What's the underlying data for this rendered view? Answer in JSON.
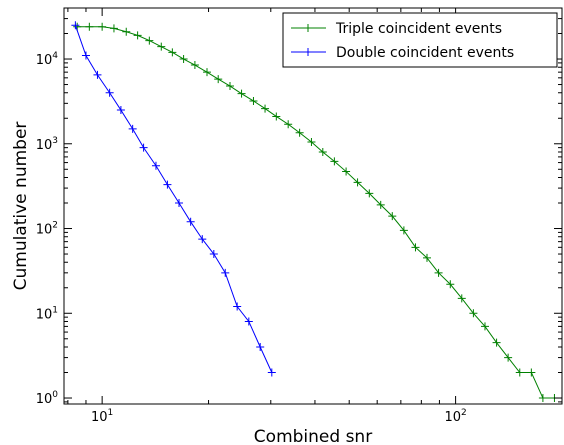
{
  "chart_data": {
    "type": "line",
    "xlabel": "Combined snr",
    "ylabel": "Cumulative number",
    "x_scale": "log",
    "y_scale": "log",
    "xlim": [
      7.8,
      200
    ],
    "ylim": [
      0.85,
      40000
    ],
    "x_ticks": [
      {
        "value": 10,
        "base": "10",
        "exp": "1"
      },
      {
        "value": 100,
        "base": "10",
        "exp": "2"
      }
    ],
    "y_ticks": [
      {
        "value": 1,
        "base": "10",
        "exp": "0"
      },
      {
        "value": 10,
        "base": "10",
        "exp": "1"
      },
      {
        "value": 100,
        "base": "10",
        "exp": "2"
      },
      {
        "value": 1000,
        "base": "10",
        "exp": "3"
      },
      {
        "value": 10000,
        "base": "10",
        "exp": "4"
      }
    ],
    "grid": false,
    "legend_position": "top-right",
    "series": [
      {
        "name": "Triple coincident events",
        "color": "#008000",
        "marker": "plus",
        "points": [
          [
            8.5,
            24000
          ],
          [
            9.2,
            24000
          ],
          [
            10.0,
            24000
          ],
          [
            10.8,
            23000
          ],
          [
            11.7,
            21000
          ],
          [
            12.6,
            19000
          ],
          [
            13.6,
            16500
          ],
          [
            14.7,
            14000
          ],
          [
            15.8,
            12000
          ],
          [
            17.0,
            10000
          ],
          [
            18.3,
            8500
          ],
          [
            19.8,
            7000
          ],
          [
            21.3,
            5800
          ],
          [
            23.0,
            4800
          ],
          [
            24.8,
            3900
          ],
          [
            26.8,
            3200
          ],
          [
            28.9,
            2600
          ],
          [
            31.1,
            2100
          ],
          [
            33.6,
            1700
          ],
          [
            36.2,
            1350
          ],
          [
            39.1,
            1050
          ],
          [
            42.1,
            800
          ],
          [
            45.4,
            620
          ],
          [
            49.0,
            470
          ],
          [
            52.8,
            350
          ],
          [
            57.0,
            260
          ],
          [
            61.4,
            190
          ],
          [
            66.2,
            140
          ],
          [
            71.4,
            95
          ],
          [
            77.0,
            60
          ],
          [
            83.0,
            45
          ],
          [
            89.5,
            30
          ],
          [
            96.6,
            22
          ],
          [
            104.1,
            15
          ],
          [
            112.3,
            10
          ],
          [
            121.1,
            7
          ],
          [
            130.6,
            4.5
          ],
          [
            140.8,
            3
          ],
          [
            151.9,
            2
          ],
          [
            163.8,
            2
          ],
          [
            176.6,
            1
          ],
          [
            190.4,
            1
          ]
        ]
      },
      {
        "name": "Double coincident events",
        "color": "#0000ff",
        "marker": "plus",
        "points": [
          [
            8.4,
            25000
          ],
          [
            9.0,
            11000
          ],
          [
            9.7,
            6500
          ],
          [
            10.5,
            4000
          ],
          [
            11.3,
            2500
          ],
          [
            12.2,
            1500
          ],
          [
            13.1,
            900
          ],
          [
            14.2,
            550
          ],
          [
            15.3,
            330
          ],
          [
            16.5,
            200
          ],
          [
            17.8,
            120
          ],
          [
            19.2,
            75
          ],
          [
            20.7,
            50
          ],
          [
            22.3,
            30
          ],
          [
            24.1,
            12
          ],
          [
            26.0,
            8
          ],
          [
            28.0,
            4
          ],
          [
            30.2,
            2
          ]
        ]
      }
    ]
  }
}
